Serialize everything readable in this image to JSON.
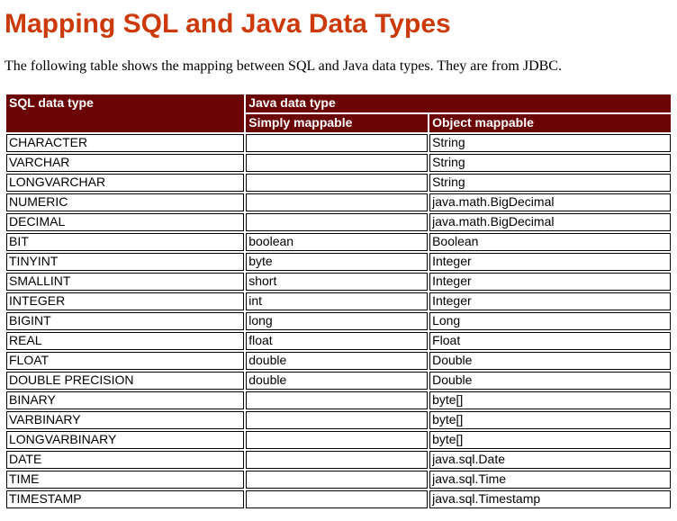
{
  "page": {
    "title": "Mapping SQL and Java Data Types",
    "intro": "The following table shows the mapping between SQL and Java data types. They are from JDBC."
  },
  "colors": {
    "title_color": "#cc3a0a",
    "header_bg": "#6b0404",
    "header_text": "#ffffff",
    "cell_border": "#000000",
    "page_bg": "#ffffff"
  },
  "table": {
    "header": {
      "sql_col": "SQL data type",
      "java_col": "Java data type",
      "sub_simply": "Simply mappable",
      "sub_object": "Object mappable"
    },
    "rows": [
      {
        "sql": "CHARACTER",
        "simply": "",
        "object": "String"
      },
      {
        "sql": "VARCHAR",
        "simply": "",
        "object": "String"
      },
      {
        "sql": "LONGVARCHAR",
        "simply": "",
        "object": "String"
      },
      {
        "sql": "NUMERIC",
        "simply": "",
        "object": "java.math.BigDecimal"
      },
      {
        "sql": "DECIMAL",
        "simply": "",
        "object": "java.math.BigDecimal"
      },
      {
        "sql": "BIT",
        "simply": "boolean",
        "object": "Boolean"
      },
      {
        "sql": "TINYINT",
        "simply": "byte",
        "object": "Integer"
      },
      {
        "sql": "SMALLINT",
        "simply": "short",
        "object": "Integer"
      },
      {
        "sql": "INTEGER",
        "simply": "int",
        "object": "Integer"
      },
      {
        "sql": "BIGINT",
        "simply": "long",
        "object": "Long"
      },
      {
        "sql": "REAL",
        "simply": "float",
        "object": "Float"
      },
      {
        "sql": "FLOAT",
        "simply": "double",
        "object": "Double"
      },
      {
        "sql": "DOUBLE PRECISION",
        "simply": "double",
        "object": "Double"
      },
      {
        "sql": "BINARY",
        "simply": "",
        "object": "byte[]"
      },
      {
        "sql": "VARBINARY",
        "simply": "",
        "object": "byte[]"
      },
      {
        "sql": "LONGVARBINARY",
        "simply": "",
        "object": "byte[]"
      },
      {
        "sql": "DATE",
        "simply": "",
        "object": "java.sql.Date"
      },
      {
        "sql": "TIME",
        "simply": "",
        "object": "java.sql.Time"
      },
      {
        "sql": "TIMESTAMP",
        "simply": "",
        "object": "java.sql.Timestamp"
      }
    ]
  }
}
